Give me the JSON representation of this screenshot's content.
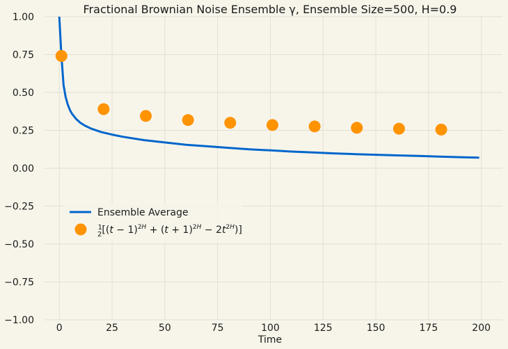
{
  "chart_data": {
    "type": "line+scatter",
    "title": "Fractional Brownian Noise Ensemble γ, Ensemble Size=500, H=0.9",
    "xlabel": "Time",
    "ylabel": "",
    "xlim": [
      -7,
      210
    ],
    "ylim": [
      -1.0,
      1.0
    ],
    "xticks": [
      0,
      25,
      50,
      75,
      100,
      125,
      150,
      175,
      200
    ],
    "yticks": [
      -1.0,
      -0.75,
      -0.5,
      -0.25,
      0.0,
      0.25,
      0.5,
      0.75,
      1.0
    ],
    "xtick_labels": [
      "0",
      "25",
      "50",
      "75",
      "100",
      "125",
      "150",
      "175",
      "200"
    ],
    "ytick_labels": [
      "−1.00",
      "−0.75",
      "−0.50",
      "−0.25",
      "0.00",
      "0.25",
      "0.50",
      "0.75",
      "1.00"
    ],
    "grid": true,
    "legend_position": "center-left",
    "series": [
      {
        "name": "Ensemble Average",
        "kind": "line",
        "color": "#0066cc",
        "x": [
          0,
          1,
          2,
          3,
          4,
          5,
          6,
          8,
          10,
          12,
          15,
          20,
          25,
          30,
          40,
          50,
          60,
          70,
          80,
          90,
          100,
          110,
          120,
          130,
          140,
          150,
          160,
          170,
          180,
          190,
          199
        ],
        "y": [
          1.0,
          0.74,
          0.55,
          0.47,
          0.42,
          0.385,
          0.36,
          0.325,
          0.3,
          0.282,
          0.262,
          0.238,
          0.222,
          0.208,
          0.186,
          0.17,
          0.155,
          0.145,
          0.135,
          0.125,
          0.118,
          0.11,
          0.104,
          0.098,
          0.093,
          0.089,
          0.085,
          0.081,
          0.077,
          0.073,
          0.07
        ]
      },
      {
        "name": "½[(t−1)^2H + (t+1)^2H − 2t^2H)]",
        "kind": "scatter",
        "color": "#ff9300",
        "x": [
          1,
          21,
          41,
          61,
          81,
          101,
          121,
          141,
          161,
          181
        ],
        "y": [
          0.741,
          0.39,
          0.345,
          0.318,
          0.3,
          0.285,
          0.276,
          0.267,
          0.261,
          0.255
        ]
      }
    ]
  }
}
